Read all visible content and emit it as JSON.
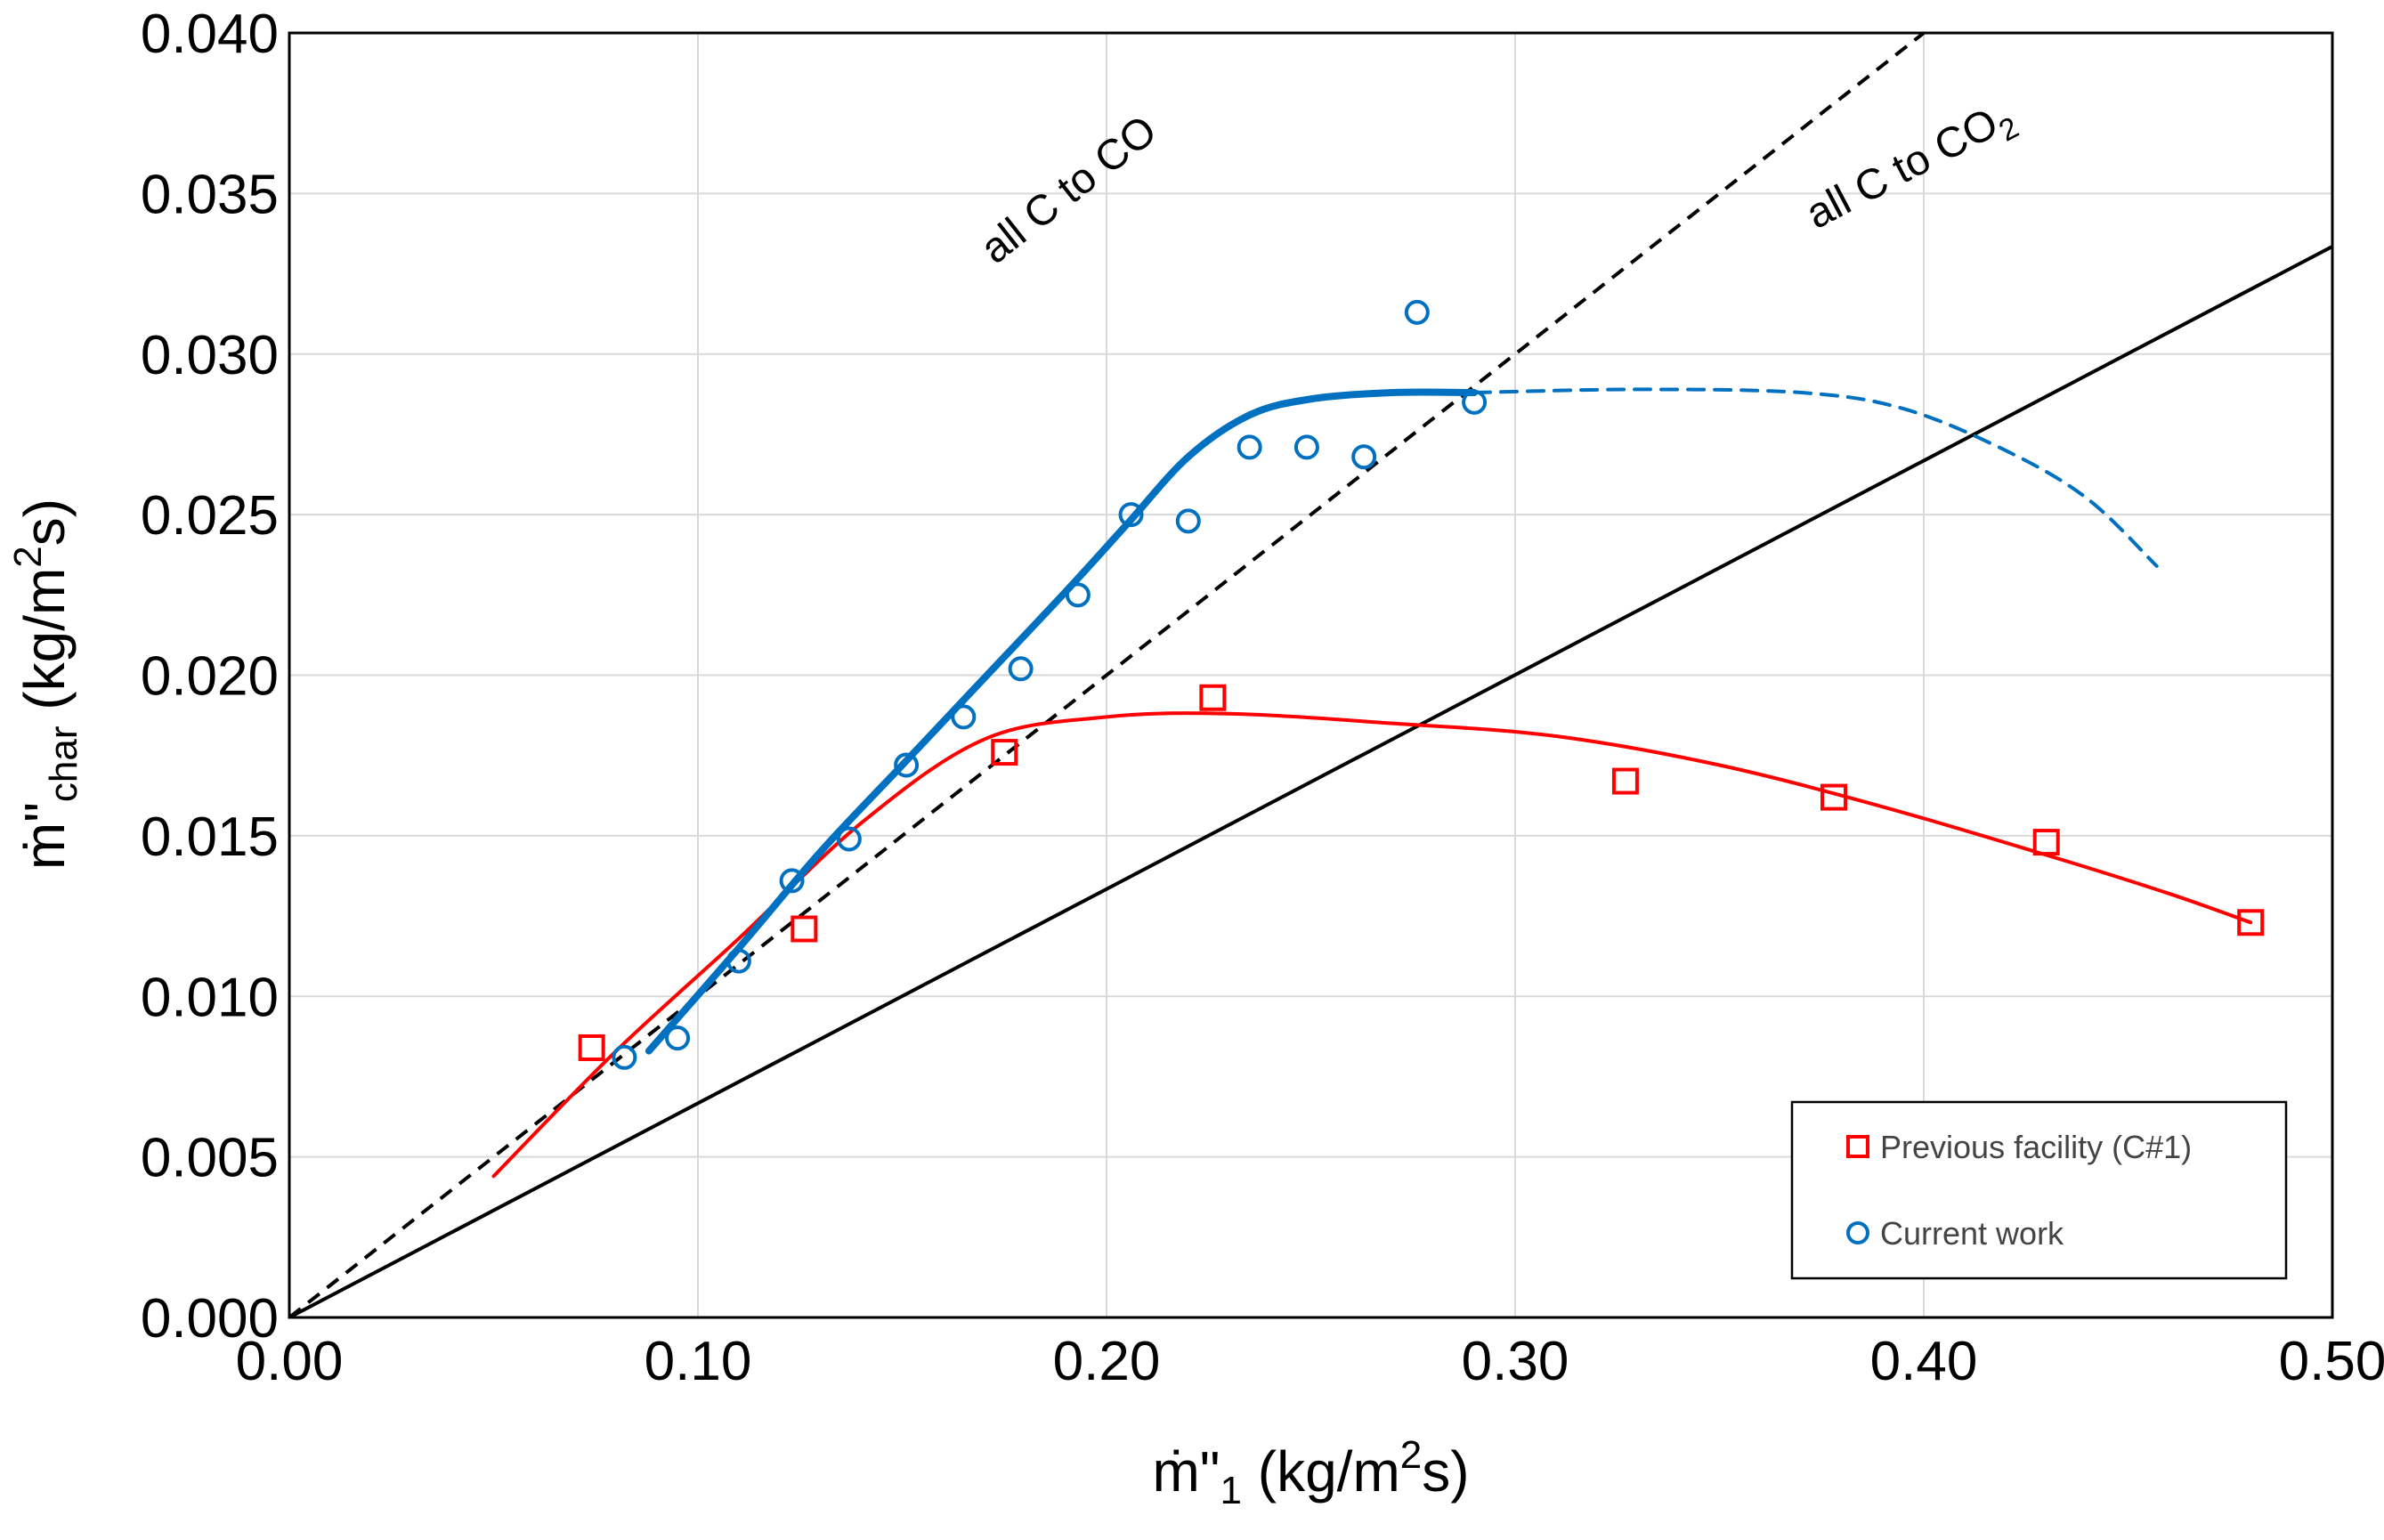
{
  "chart_data": {
    "type": "scatter",
    "xlabel_main": "ṁ\"",
    "xlabel_sub": "1",
    "xlabel_units_pre": " (kg/m",
    "xlabel_units_sup": "2",
    "xlabel_units_post": "s)",
    "ylabel_main": "ṁ\"",
    "ylabel_sub": "char",
    "ylabel_units_pre": " (kg/m",
    "ylabel_units_sup": "2",
    "ylabel_units_post": "s)",
    "xlim": [
      0.0,
      0.5
    ],
    "ylim": [
      0.0,
      0.04
    ],
    "x_ticks": [
      {
        "value": 0.0,
        "label": "0.00"
      },
      {
        "value": 0.1,
        "label": "0.10"
      },
      {
        "value": 0.2,
        "label": "0.20"
      },
      {
        "value": 0.3,
        "label": "0.30"
      },
      {
        "value": 0.4,
        "label": "0.40"
      },
      {
        "value": 0.5,
        "label": "0.50"
      }
    ],
    "y_ticks": [
      {
        "value": 0.0,
        "label": "0.000"
      },
      {
        "value": 0.005,
        "label": "0.005"
      },
      {
        "value": 0.01,
        "label": "0.010"
      },
      {
        "value": 0.015,
        "label": "0.015"
      },
      {
        "value": 0.02,
        "label": "0.020"
      },
      {
        "value": 0.025,
        "label": "0.025"
      },
      {
        "value": 0.03,
        "label": "0.030"
      },
      {
        "value": 0.035,
        "label": "0.035"
      },
      {
        "value": 0.04,
        "label": "0.040"
      }
    ],
    "grid": true,
    "reference_lines": [
      {
        "name": "all C to CO",
        "label": "all C to CO",
        "label_sub": "",
        "slope": 0.1,
        "style": "dashed",
        "color": "#000000"
      },
      {
        "name": "all C to CO2",
        "label": "all C to CO",
        "label_sub": "2",
        "slope": 0.0667,
        "style": "solid",
        "color": "#000000"
      }
    ],
    "series": [
      {
        "name": "Previous facility (C#1)",
        "marker": "square",
        "color": "#ff0000",
        "points": [
          {
            "x": 0.074,
            "y": 0.0084
          },
          {
            "x": 0.126,
            "y": 0.0121
          },
          {
            "x": 0.175,
            "y": 0.0176
          },
          {
            "x": 0.226,
            "y": 0.0193
          },
          {
            "x": 0.327,
            "y": 0.0167
          },
          {
            "x": 0.378,
            "y": 0.0162
          },
          {
            "x": 0.43,
            "y": 0.0148
          },
          {
            "x": 0.48,
            "y": 0.0123
          }
        ]
      },
      {
        "name": "Current work",
        "marker": "circle",
        "color": "#0070c0",
        "points": [
          {
            "x": 0.082,
            "y": 0.0081
          },
          {
            "x": 0.095,
            "y": 0.0087
          },
          {
            "x": 0.11,
            "y": 0.0111
          },
          {
            "x": 0.123,
            "y": 0.0136
          },
          {
            "x": 0.137,
            "y": 0.0149
          },
          {
            "x": 0.151,
            "y": 0.0172
          },
          {
            "x": 0.165,
            "y": 0.0187
          },
          {
            "x": 0.179,
            "y": 0.0202
          },
          {
            "x": 0.193,
            "y": 0.0225
          },
          {
            "x": 0.206,
            "y": 0.025
          },
          {
            "x": 0.22,
            "y": 0.0248
          },
          {
            "x": 0.235,
            "y": 0.0271
          },
          {
            "x": 0.249,
            "y": 0.0271
          },
          {
            "x": 0.263,
            "y": 0.0268
          },
          {
            "x": 0.276,
            "y": 0.0313
          },
          {
            "x": 0.29,
            "y": 0.0285
          }
        ]
      }
    ],
    "trend_curves": [
      {
        "name": "Previous facility trend",
        "color": "#ff0000",
        "style": "solid",
        "width": "thin",
        "points": [
          {
            "x": 0.05,
            "y": 0.0044
          },
          {
            "x": 0.08,
            "y": 0.0083
          },
          {
            "x": 0.11,
            "y": 0.0118
          },
          {
            "x": 0.14,
            "y": 0.0154
          },
          {
            "x": 0.17,
            "y": 0.018
          },
          {
            "x": 0.2,
            "y": 0.0187
          },
          {
            "x": 0.23,
            "y": 0.0188
          },
          {
            "x": 0.27,
            "y": 0.0185
          },
          {
            "x": 0.31,
            "y": 0.0181
          },
          {
            "x": 0.35,
            "y": 0.0172
          },
          {
            "x": 0.39,
            "y": 0.0159
          },
          {
            "x": 0.43,
            "y": 0.0144
          },
          {
            "x": 0.46,
            "y": 0.0132
          },
          {
            "x": 0.48,
            "y": 0.0123
          }
        ]
      },
      {
        "name": "Current work trend",
        "color": "#0070c0",
        "style": "solid",
        "width": "thick",
        "points": [
          {
            "x": 0.088,
            "y": 0.0083
          },
          {
            "x": 0.11,
            "y": 0.0115
          },
          {
            "x": 0.13,
            "y": 0.0145
          },
          {
            "x": 0.15,
            "y": 0.0172
          },
          {
            "x": 0.17,
            "y": 0.0199
          },
          {
            "x": 0.19,
            "y": 0.0226
          },
          {
            "x": 0.205,
            "y": 0.0247
          },
          {
            "x": 0.22,
            "y": 0.0268
          },
          {
            "x": 0.235,
            "y": 0.0281
          },
          {
            "x": 0.25,
            "y": 0.0286
          },
          {
            "x": 0.27,
            "y": 0.0288
          },
          {
            "x": 0.29,
            "y": 0.0288
          }
        ]
      },
      {
        "name": "Current work extrapolation",
        "color": "#0070c0",
        "style": "dashed",
        "width": "thin",
        "points": [
          {
            "x": 0.29,
            "y": 0.0288
          },
          {
            "x": 0.33,
            "y": 0.0289
          },
          {
            "x": 0.37,
            "y": 0.0288
          },
          {
            "x": 0.395,
            "y": 0.0283
          },
          {
            "x": 0.42,
            "y": 0.027
          },
          {
            "x": 0.44,
            "y": 0.0255
          },
          {
            "x": 0.457,
            "y": 0.0234
          }
        ]
      }
    ],
    "legend": {
      "placement": "bottom-right",
      "entries": [
        {
          "label": "Previous facility (C#1)",
          "marker": "square",
          "color": "#ff0000"
        },
        {
          "label": "Current work",
          "marker": "circle",
          "color": "#0070c0"
        }
      ]
    }
  }
}
